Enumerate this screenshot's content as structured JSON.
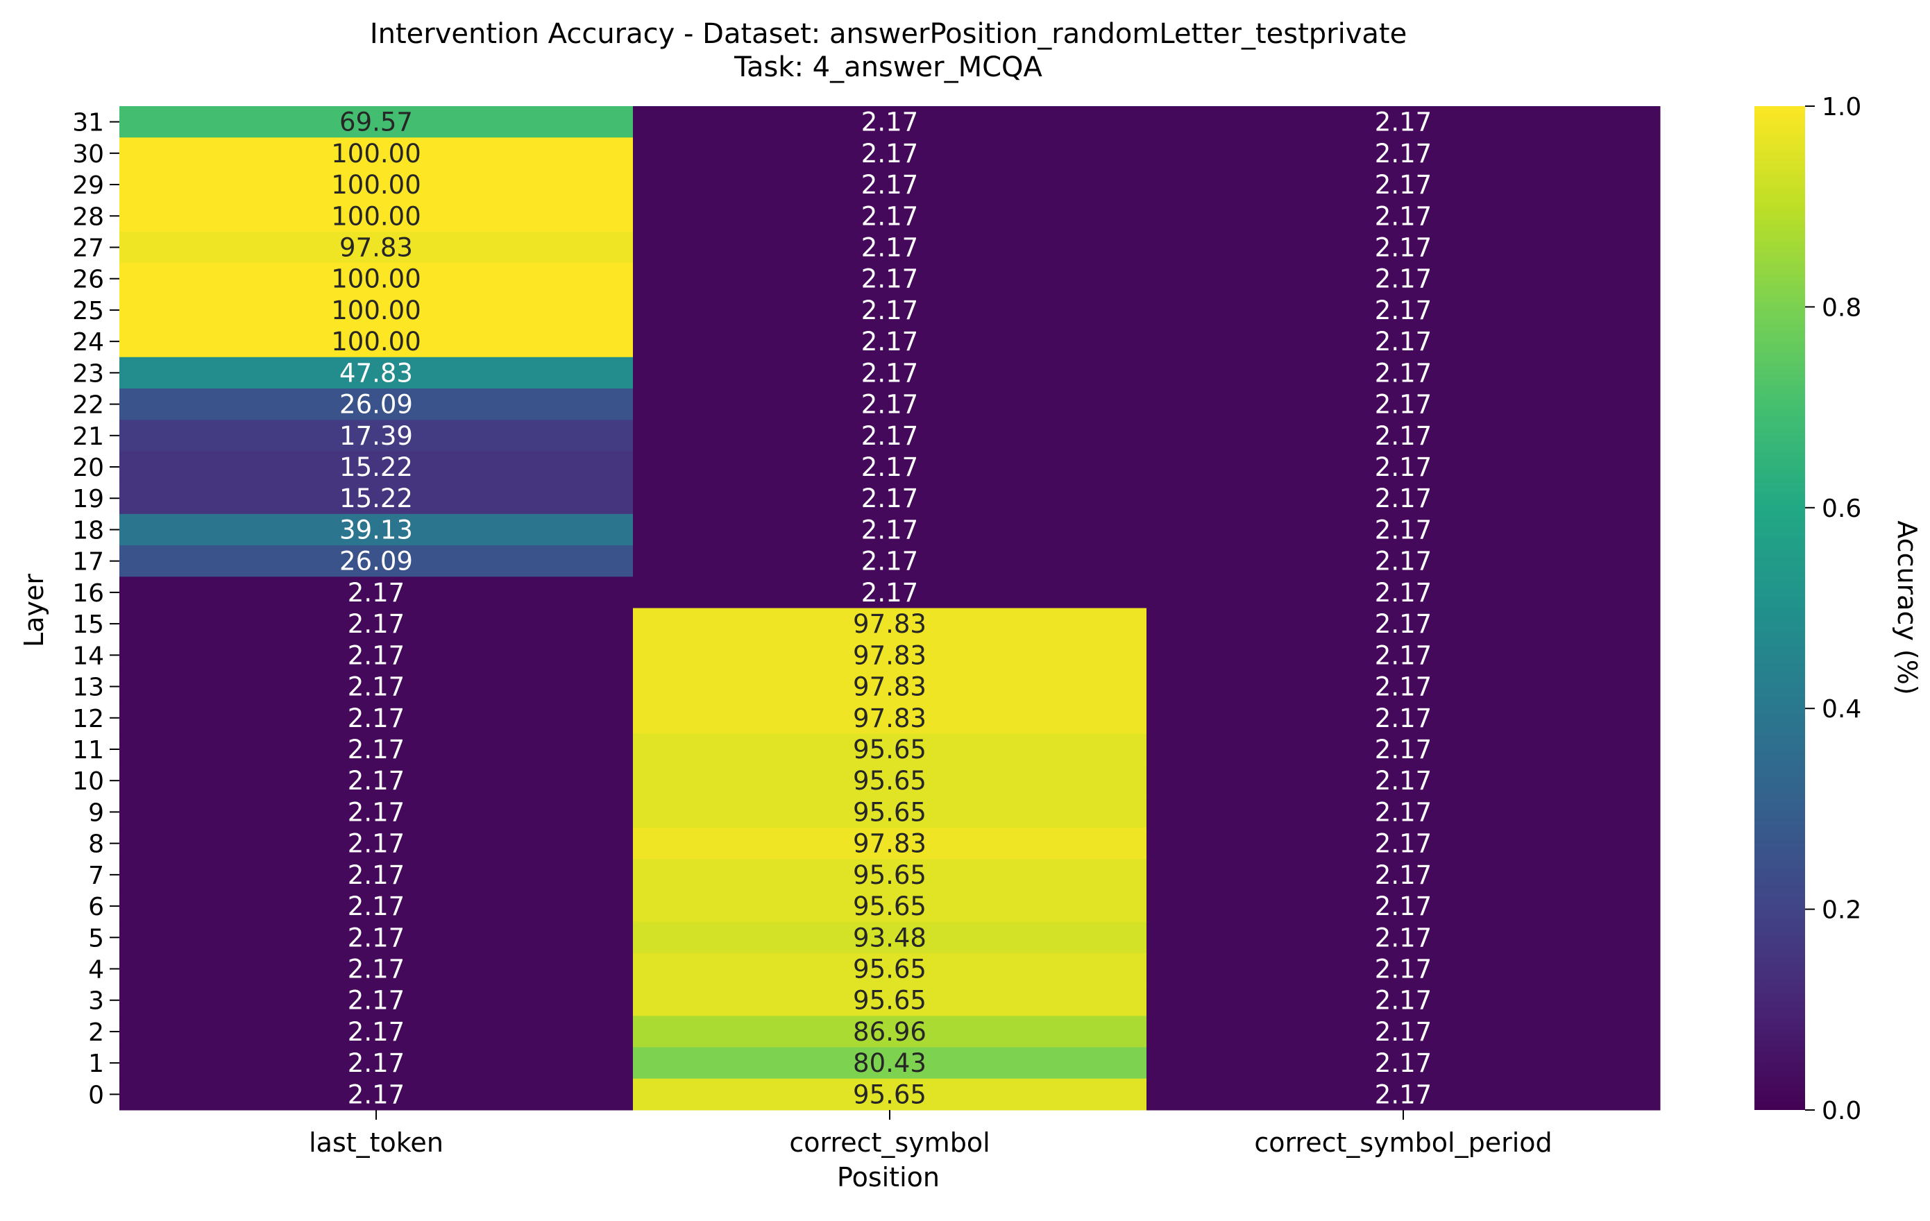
{
  "chart_data": {
    "type": "heatmap",
    "title": "Intervention Accuracy - Dataset: answerPosition_randomLetter_testprivate",
    "subtitle": "Task: 4_answer_MCQA",
    "xlabel": "Position",
    "ylabel": "Layer",
    "colorbar_label": "Accuracy (%)",
    "colormap": "viridis",
    "color_range": [
      0.0,
      1.0
    ],
    "colorbar_ticks": [
      "0.0",
      "0.2",
      "0.4",
      "0.6",
      "0.8",
      "1.0"
    ],
    "columns": [
      "last_token",
      "correct_symbol",
      "correct_symbol_period"
    ],
    "rows": [
      31,
      30,
      29,
      28,
      27,
      26,
      25,
      24,
      23,
      22,
      21,
      20,
      19,
      18,
      17,
      16,
      15,
      14,
      13,
      12,
      11,
      10,
      9,
      8,
      7,
      6,
      5,
      4,
      3,
      2,
      1,
      0
    ],
    "values": [
      [
        69.57,
        2.17,
        2.17
      ],
      [
        100.0,
        2.17,
        2.17
      ],
      [
        100.0,
        2.17,
        2.17
      ],
      [
        100.0,
        2.17,
        2.17
      ],
      [
        97.83,
        2.17,
        2.17
      ],
      [
        100.0,
        2.17,
        2.17
      ],
      [
        100.0,
        2.17,
        2.17
      ],
      [
        100.0,
        2.17,
        2.17
      ],
      [
        47.83,
        2.17,
        2.17
      ],
      [
        26.09,
        2.17,
        2.17
      ],
      [
        17.39,
        2.17,
        2.17
      ],
      [
        15.22,
        2.17,
        2.17
      ],
      [
        15.22,
        2.17,
        2.17
      ],
      [
        39.13,
        2.17,
        2.17
      ],
      [
        26.09,
        2.17,
        2.17
      ],
      [
        2.17,
        2.17,
        2.17
      ],
      [
        2.17,
        97.83,
        2.17
      ],
      [
        2.17,
        97.83,
        2.17
      ],
      [
        2.17,
        97.83,
        2.17
      ],
      [
        2.17,
        97.83,
        2.17
      ],
      [
        2.17,
        95.65,
        2.17
      ],
      [
        2.17,
        95.65,
        2.17
      ],
      [
        2.17,
        95.65,
        2.17
      ],
      [
        2.17,
        97.83,
        2.17
      ],
      [
        2.17,
        95.65,
        2.17
      ],
      [
        2.17,
        95.65,
        2.17
      ],
      [
        2.17,
        93.48,
        2.17
      ],
      [
        2.17,
        95.65,
        2.17
      ],
      [
        2.17,
        95.65,
        2.17
      ],
      [
        2.17,
        86.96,
        2.17
      ],
      [
        2.17,
        80.43,
        2.17
      ],
      [
        2.17,
        95.65,
        2.17
      ]
    ]
  }
}
